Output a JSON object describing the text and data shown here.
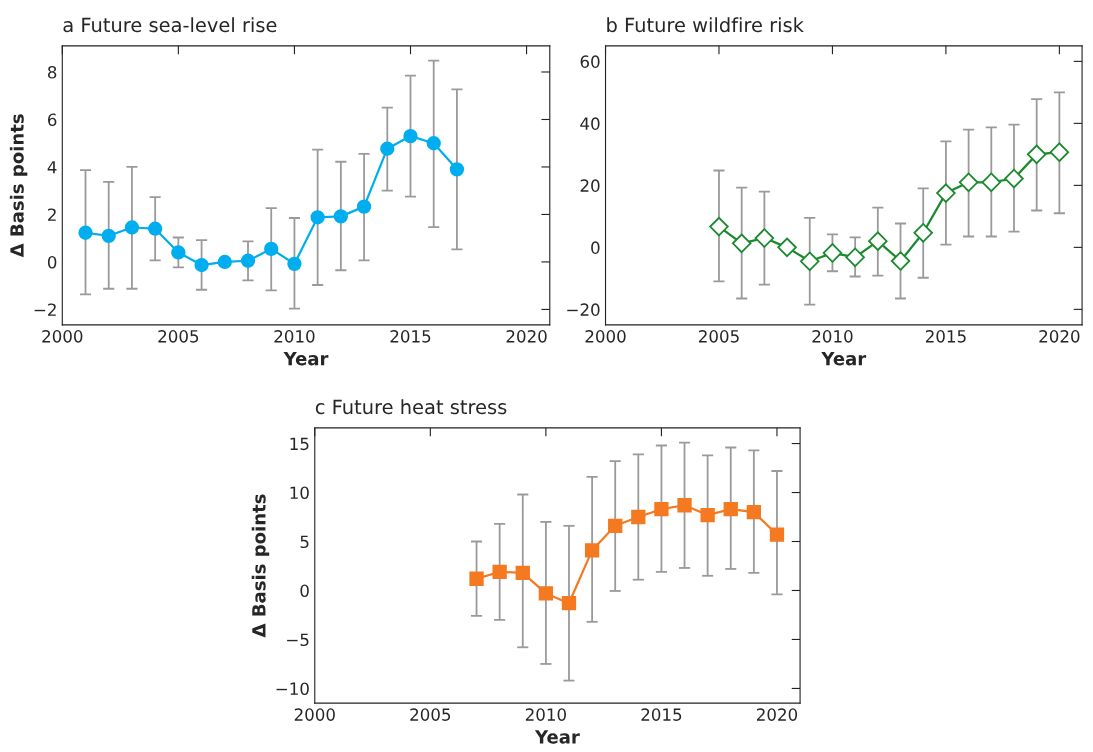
{
  "chart_data": [
    {
      "type": "line",
      "title": "a Future sea-level rise",
      "xlabel": "Year",
      "ylabel": "Δ Basis points",
      "marker": "circle",
      "grid": false,
      "x": [
        2001,
        2002,
        2003,
        2004,
        2005,
        2006,
        2007,
        2008,
        2009,
        2010,
        2011,
        2012,
        2013,
        2014,
        2015,
        2016,
        2017
      ],
      "series": [
        {
          "color": "#00aeef",
          "values": [
            1.23,
            1.1,
            1.45,
            1.4,
            0.4,
            -0.13,
            0.0,
            0.05,
            0.55,
            -0.08,
            1.88,
            1.92,
            2.33,
            4.77,
            5.3,
            5.0,
            3.9
          ],
          "errors": [
            [
              -1.37,
              3.87
            ],
            [
              -1.13,
              3.37
            ],
            [
              -1.13,
              4.0
            ],
            [
              0.07,
              2.73
            ],
            [
              -0.23,
              1.03
            ],
            [
              -1.17,
              0.92
            ],
            null,
            [
              -0.78,
              0.87
            ],
            [
              -1.2,
              2.27
            ],
            [
              -1.97,
              1.85
            ],
            [
              -0.97,
              4.73
            ],
            [
              -0.35,
              4.22
            ],
            [
              0.07,
              4.55
            ],
            [
              3.0,
              6.5
            ],
            [
              2.75,
              7.85
            ],
            [
              1.47,
              8.48
            ],
            [
              0.53,
              7.27
            ]
          ]
        }
      ],
      "xlim": [
        2000,
        2021
      ],
      "xticks": [
        2000,
        2005,
        2010,
        2015,
        2020
      ],
      "ylim": [
        -2.65,
        9.1
      ],
      "yticks": [
        {
          "value": -2,
          "label": "−2"
        },
        0,
        2,
        4,
        6,
        8
      ]
    },
    {
      "type": "line",
      "title": "b Future wildfire risk",
      "xlabel": "Year",
      "marker": "diamond",
      "grid": false,
      "x": [
        2005,
        2006,
        2007,
        2008,
        2009,
        2010,
        2011,
        2012,
        2013,
        2014,
        2015,
        2016,
        2017,
        2018,
        2019,
        2020
      ],
      "series": [
        {
          "color": "#1a8a2e",
          "values": [
            6.7,
            1.3,
            3.0,
            0.0,
            -4.5,
            -1.8,
            -3.2,
            2.0,
            -4.4,
            4.7,
            17.5,
            21.0,
            21.0,
            22.2,
            30.0,
            30.7
          ],
          "errors": [
            [
              -11,
              24.8
            ],
            [
              -16.5,
              19.3
            ],
            [
              -12,
              18
            ],
            null,
            [
              -18.5,
              9.5
            ],
            [
              -7.7,
              4.2
            ],
            [
              -9.4,
              3.2
            ],
            [
              -9.1,
              12.8
            ],
            [
              -16.5,
              7.7
            ],
            [
              -9.8,
              19
            ],
            [
              0.9,
              34.2
            ],
            [
              3.5,
              38
            ],
            [
              3.5,
              38.7
            ],
            [
              5.1,
              39.6
            ],
            [
              11.9,
              47.8
            ],
            [
              11,
              50
            ]
          ]
        }
      ],
      "xlim": [
        2000,
        2021
      ],
      "xticks": [
        2000,
        2005,
        2010,
        2015,
        2020
      ],
      "ylim": [
        -25,
        65
      ],
      "yticks": [
        {
          "value": -20,
          "label": "−20"
        },
        0,
        20,
        40,
        60
      ]
    },
    {
      "type": "line",
      "title": "c Future heat stress",
      "xlabel": "Year",
      "ylabel": "Δ Basis points",
      "marker": "square",
      "grid": false,
      "x": [
        2007,
        2008,
        2009,
        2010,
        2011,
        2012,
        2013,
        2014,
        2015,
        2016,
        2017,
        2018,
        2019,
        2020
      ],
      "series": [
        {
          "color": "#f47920",
          "values": [
            1.2,
            1.9,
            1.8,
            -0.3,
            -1.3,
            4.1,
            6.6,
            7.5,
            8.3,
            8.7,
            7.7,
            8.3,
            8.0,
            5.7
          ],
          "errors": [
            [
              -2.6,
              5.0
            ],
            [
              -3.0,
              6.8
            ],
            [
              -5.8,
              9.8
            ],
            [
              -7.5,
              7.0
            ],
            [
              -9.2,
              6.6
            ],
            [
              -3.2,
              11.6
            ],
            [
              -0.05,
              13.2
            ],
            [
              1.1,
              13.9
            ],
            [
              1.9,
              14.8
            ],
            [
              2.3,
              15.1
            ],
            [
              1.5,
              13.8
            ],
            [
              2.2,
              14.6
            ],
            [
              1.8,
              14.3
            ],
            [
              -0.4,
              12.2
            ]
          ]
        }
      ],
      "xlim": [
        2000,
        2021
      ],
      "xticks": [
        2000,
        2005,
        2010,
        2015,
        2020
      ],
      "ylim": [
        -11.5,
        16.6
      ],
      "yticks": [
        {
          "value": -10,
          "label": "−10"
        },
        {
          "value": -5,
          "label": "−5"
        },
        0,
        5,
        10,
        15
      ]
    }
  ]
}
